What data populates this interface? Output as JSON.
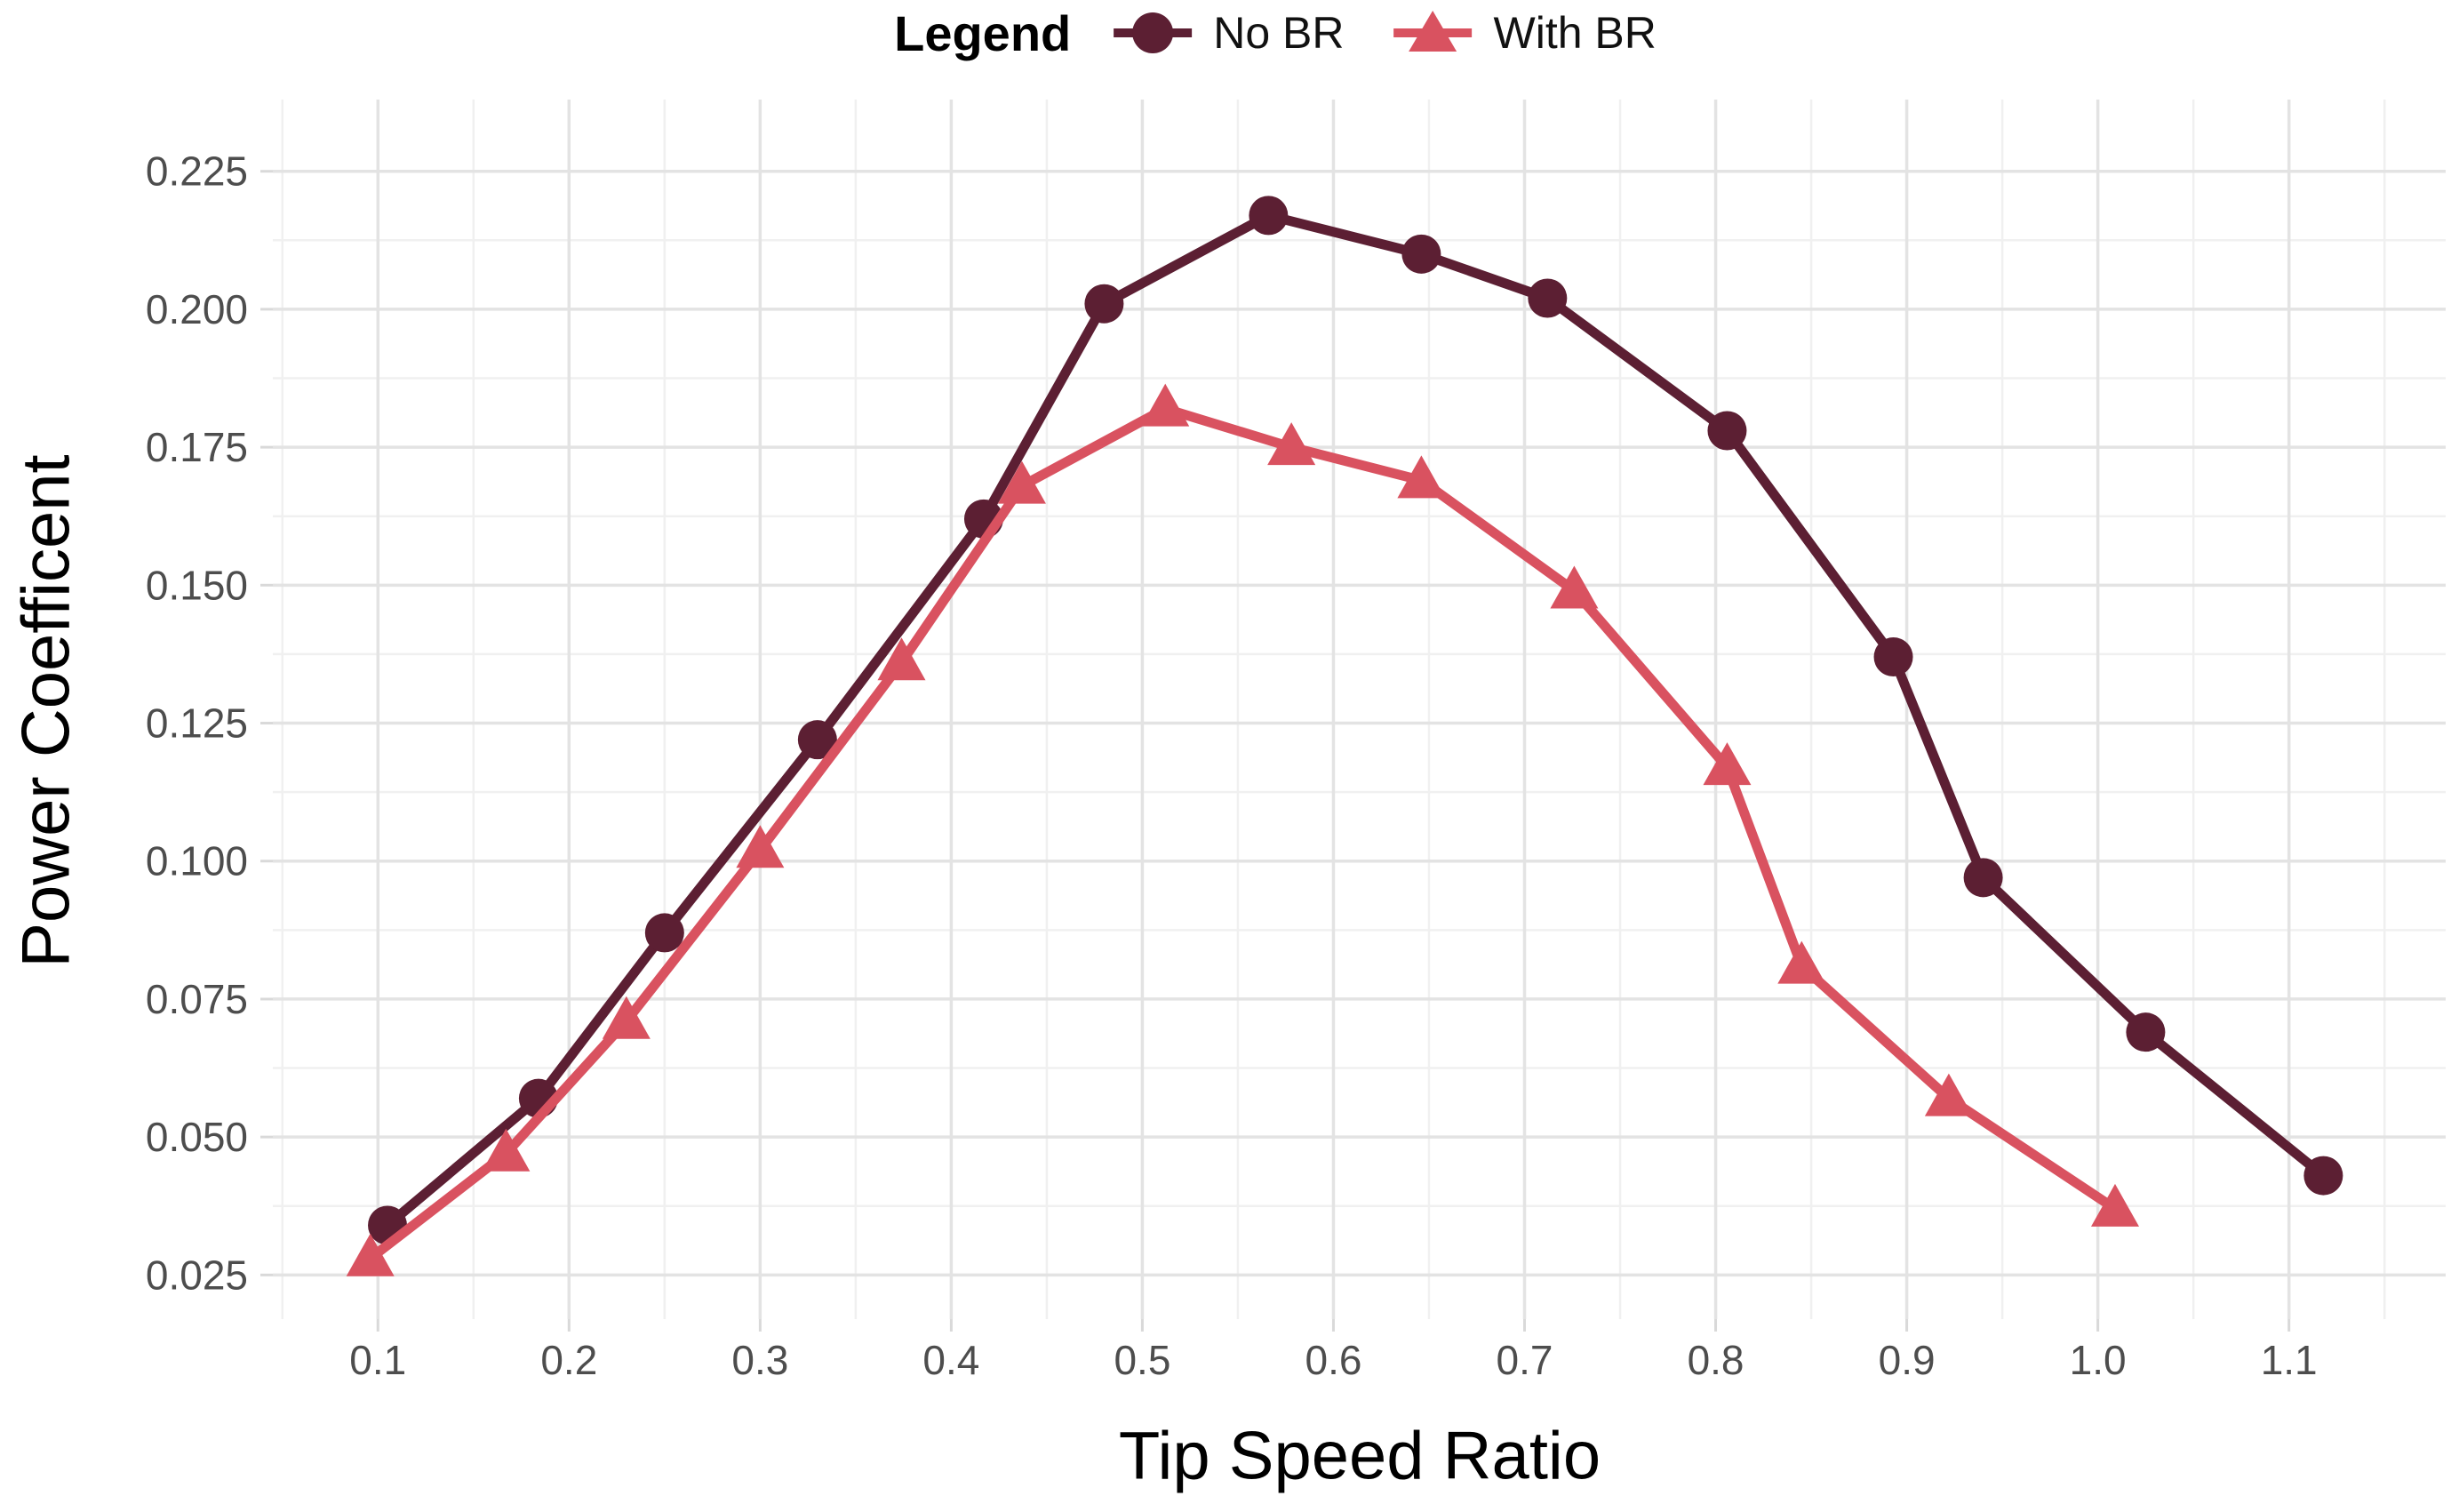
{
  "figure": {
    "background": "#ffffff"
  },
  "legend": {
    "title": "Legend",
    "items": [
      {
        "label": "No BR",
        "marker": "circle",
        "color": "#5c1f33"
      },
      {
        "label": "With BR",
        "marker": "triangle",
        "color": "#d95260"
      }
    ]
  },
  "chart_data": {
    "type": "line",
    "title": "",
    "xlabel": "Tip Speed Ratio",
    "ylabel": "Power Coefficent",
    "legend_position": "top-center",
    "grid": "major+minor",
    "xlim": [
      0.045,
      1.182
    ],
    "ylim": [
      0.017,
      0.238
    ],
    "x_ticks": [
      0.1,
      0.2,
      0.3,
      0.4,
      0.5,
      0.6,
      0.7,
      0.8,
      0.9,
      1.0,
      1.1
    ],
    "x_tick_labels": [
      "0.1",
      "0.2",
      "0.3",
      "0.4",
      "0.5",
      "0.6",
      "0.7",
      "0.8",
      "0.9",
      "1.0",
      "1.1"
    ],
    "x_minor_ticks": [
      0.05,
      0.15,
      0.25,
      0.35,
      0.45,
      0.55,
      0.65,
      0.75,
      0.85,
      0.95,
      1.05,
      1.15
    ],
    "y_ticks": [
      0.025,
      0.05,
      0.075,
      0.1,
      0.125,
      0.15,
      0.175,
      0.2,
      0.225
    ],
    "y_tick_labels": [
      "0.025",
      "0.050",
      "0.075",
      "0.100",
      "0.125",
      "0.150",
      "0.175",
      "0.200",
      "0.225"
    ],
    "y_minor_ticks": [
      0.0375,
      0.0625,
      0.0875,
      0.1125,
      0.1375,
      0.1625,
      0.1875,
      0.2125
    ],
    "colors": {
      "major_grid": "#e3e3e3",
      "minor_grid": "#f0f0f0",
      "tick": "#d9d9d9",
      "tick_text": "#4d4d4d"
    },
    "series": [
      {
        "name": "No BR",
        "marker": "circle",
        "color": "#5c1f33",
        "points": [
          [
            0.105,
            0.034
          ],
          [
            0.184,
            0.057
          ],
          [
            0.25,
            0.087
          ],
          [
            0.33,
            0.122
          ],
          [
            0.417,
            0.162
          ],
          [
            0.48,
            0.201
          ],
          [
            0.566,
            0.217
          ],
          [
            0.646,
            0.21
          ],
          [
            0.712,
            0.202
          ],
          [
            0.806,
            0.178
          ],
          [
            0.893,
            0.137
          ],
          [
            0.94,
            0.097
          ],
          [
            1.025,
            0.069
          ],
          [
            1.118,
            0.043
          ]
        ]
      },
      {
        "name": "With BR",
        "marker": "triangle",
        "color": "#d95260",
        "points": [
          [
            0.096,
            0.028
          ],
          [
            0.167,
            0.047
          ],
          [
            0.23,
            0.071
          ],
          [
            0.3,
            0.102
          ],
          [
            0.374,
            0.136
          ],
          [
            0.437,
            0.168
          ],
          [
            0.512,
            0.182
          ],
          [
            0.578,
            0.175
          ],
          [
            0.646,
            0.169
          ],
          [
            0.726,
            0.149
          ],
          [
            0.806,
            0.117
          ],
          [
            0.845,
            0.081
          ],
          [
            0.922,
            0.057
          ],
          [
            1.009,
            0.037
          ]
        ]
      }
    ]
  }
}
